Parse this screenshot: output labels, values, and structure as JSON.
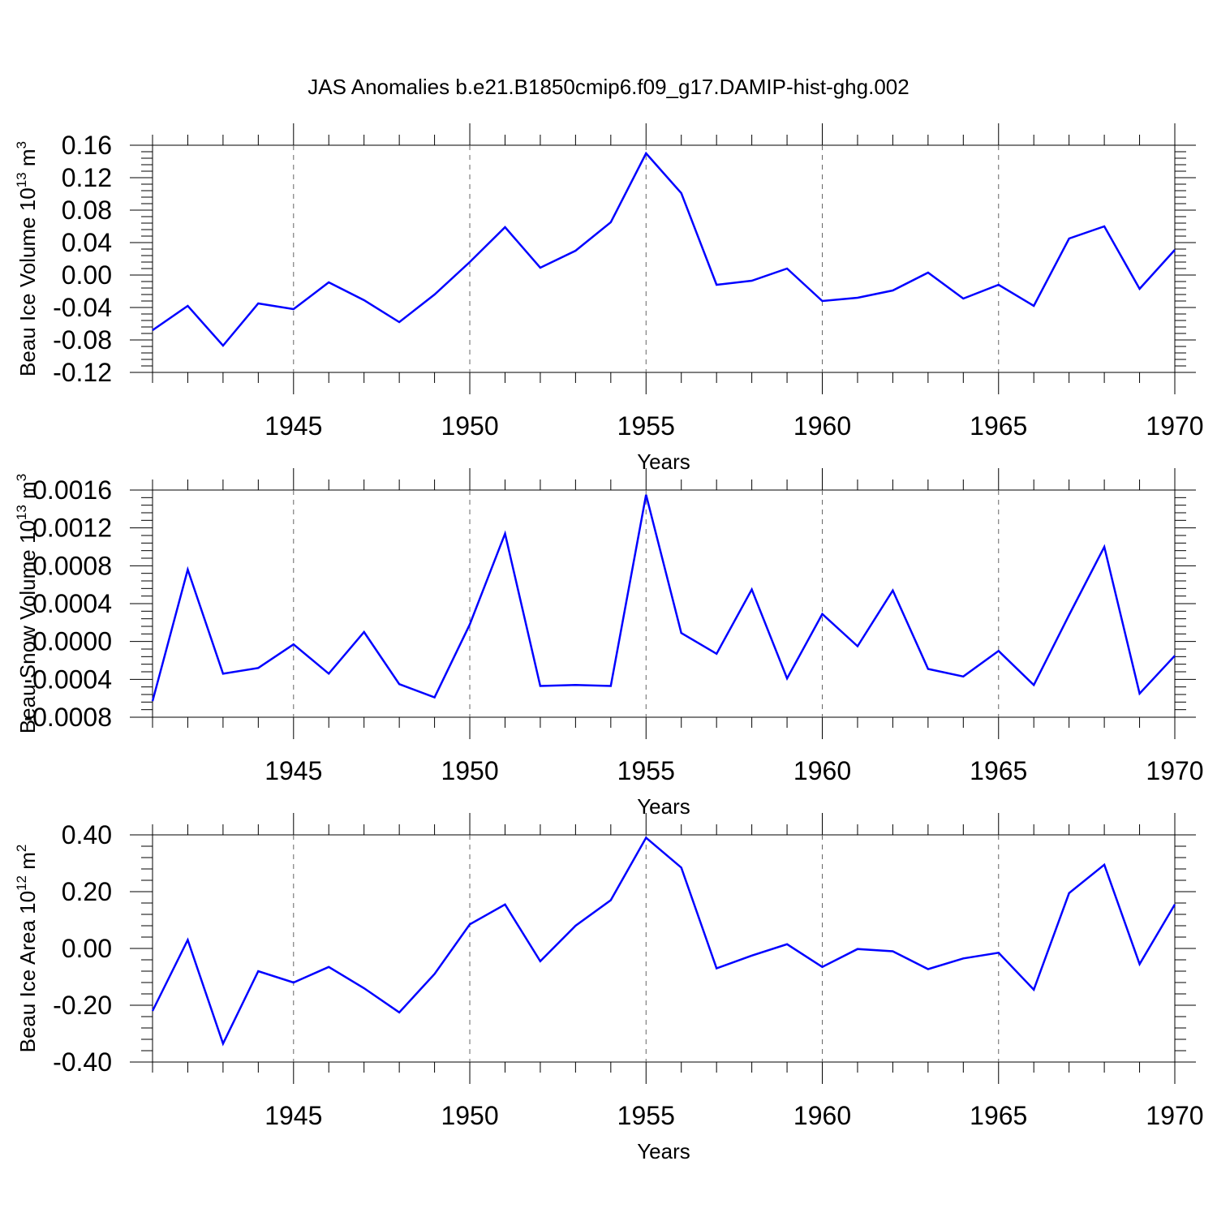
{
  "title": "JAS Anomalies b.e21.B1850cmip6.f09_g17.DAMIP-hist-ghg.002",
  "line_color": "#0000ff",
  "chart_data": [
    {
      "type": "line",
      "ylabel": "Beau Ice Volume 10",
      "ylabel_exp": "13",
      "ylabel_unit": " m",
      "ylabel_unit_exp": "3",
      "xlabel": "Years",
      "xlim": [
        1941,
        1970
      ],
      "ylim": [
        -0.12,
        0.16
      ],
      "yticks": [
        -0.12,
        -0.08,
        -0.04,
        0.0,
        0.04,
        0.08,
        0.12,
        0.16
      ],
      "ytick_labels": [
        "-0.12",
        "-0.08",
        "-0.04",
        "0.00",
        "0.04",
        "0.08",
        "0.12",
        "0.16"
      ],
      "xticks": [
        1945,
        1950,
        1955,
        1960,
        1965,
        1970
      ],
      "xtick_labels": [
        "1945",
        "1950",
        "1955",
        "1960",
        "1965",
        "1970"
      ],
      "x": [
        1941,
        1942,
        1943,
        1944,
        1945,
        1946,
        1947,
        1948,
        1949,
        1950,
        1951,
        1952,
        1953,
        1954,
        1955,
        1956,
        1957,
        1958,
        1959,
        1960,
        1961,
        1962,
        1963,
        1964,
        1965,
        1966,
        1967,
        1968,
        1969,
        1970
      ],
      "series": [
        {
          "name": "Beau Ice Volume",
          "values": [
            -0.068,
            -0.038,
            -0.087,
            -0.035,
            -0.042,
            -0.009,
            -0.031,
            -0.058,
            -0.024,
            0.016,
            0.059,
            0.009,
            0.03,
            0.065,
            0.15,
            0.101,
            -0.012,
            -0.007,
            0.008,
            -0.032,
            -0.028,
            -0.019,
            0.003,
            -0.029,
            -0.012,
            -0.038,
            0.045,
            0.06,
            -0.017,
            0.031
          ]
        }
      ]
    },
    {
      "type": "line",
      "ylabel": "Beau Snow Volume 10",
      "ylabel_exp": "13",
      "ylabel_unit": " m",
      "ylabel_unit_exp": "3",
      "xlabel": "Years",
      "xlim": [
        1941,
        1970
      ],
      "ylim": [
        -0.0008,
        0.0016
      ],
      "yticks": [
        -0.0008,
        -0.0004,
        0.0,
        0.0004,
        0.0008,
        0.0012,
        0.0016
      ],
      "ytick_labels": [
        "-0.0008",
        "-0.0004",
        "0.0000",
        "0.0004",
        "0.0008",
        "0.0012",
        "0.0016"
      ],
      "xticks": [
        1945,
        1950,
        1955,
        1960,
        1965,
        1970
      ],
      "xtick_labels": [
        "1945",
        "1950",
        "1955",
        "1960",
        "1965",
        "1970"
      ],
      "x": [
        1941,
        1942,
        1943,
        1944,
        1945,
        1946,
        1947,
        1948,
        1949,
        1950,
        1951,
        1952,
        1953,
        1954,
        1955,
        1956,
        1957,
        1958,
        1959,
        1960,
        1961,
        1962,
        1963,
        1964,
        1965,
        1966,
        1967,
        1968,
        1969,
        1970
      ],
      "series": [
        {
          "name": "Beau Snow Volume",
          "values": [
            -0.00063,
            0.00076,
            -0.00034,
            -0.00028,
            -3e-05,
            -0.00034,
            0.0001,
            -0.00045,
            -0.00059,
            0.00018,
            0.00114,
            -0.00047,
            -0.00046,
            -0.00047,
            0.00155,
            9e-05,
            -0.00013,
            0.00055,
            -0.00039,
            0.00029,
            -5e-05,
            0.00054,
            -0.00029,
            -0.00037,
            -0.0001,
            -0.00046,
            0.00028,
            0.001,
            -0.00055,
            -0.00015
          ]
        }
      ]
    },
    {
      "type": "line",
      "ylabel": "Beau Ice Area 10",
      "ylabel_exp": "12",
      "ylabel_unit": " m",
      "ylabel_unit_exp": "2",
      "xlabel": "Years",
      "xlim": [
        1941,
        1970
      ],
      "ylim": [
        -0.4,
        0.4
      ],
      "yticks": [
        -0.4,
        -0.2,
        0.0,
        0.2,
        0.4
      ],
      "ytick_labels": [
        "-0.40",
        "-0.20",
        "0.00",
        "0.20",
        "0.40"
      ],
      "xticks": [
        1945,
        1950,
        1955,
        1960,
        1965,
        1970
      ],
      "xtick_labels": [
        "1945",
        "1950",
        "1955",
        "1960",
        "1965",
        "1970"
      ],
      "x": [
        1941,
        1942,
        1943,
        1944,
        1945,
        1946,
        1947,
        1948,
        1949,
        1950,
        1951,
        1952,
        1953,
        1954,
        1955,
        1956,
        1957,
        1958,
        1959,
        1960,
        1961,
        1962,
        1963,
        1964,
        1965,
        1966,
        1967,
        1968,
        1969,
        1970
      ],
      "series": [
        {
          "name": "Beau Ice Area",
          "values": [
            -0.22,
            0.03,
            -0.335,
            -0.08,
            -0.12,
            -0.065,
            -0.14,
            -0.225,
            -0.09,
            0.085,
            0.155,
            -0.045,
            0.08,
            0.17,
            0.39,
            0.285,
            -0.07,
            -0.025,
            0.015,
            -0.065,
            -0.002,
            -0.01,
            -0.073,
            -0.035,
            -0.015,
            -0.145,
            0.195,
            0.295,
            -0.055,
            0.155
          ]
        }
      ]
    }
  ]
}
